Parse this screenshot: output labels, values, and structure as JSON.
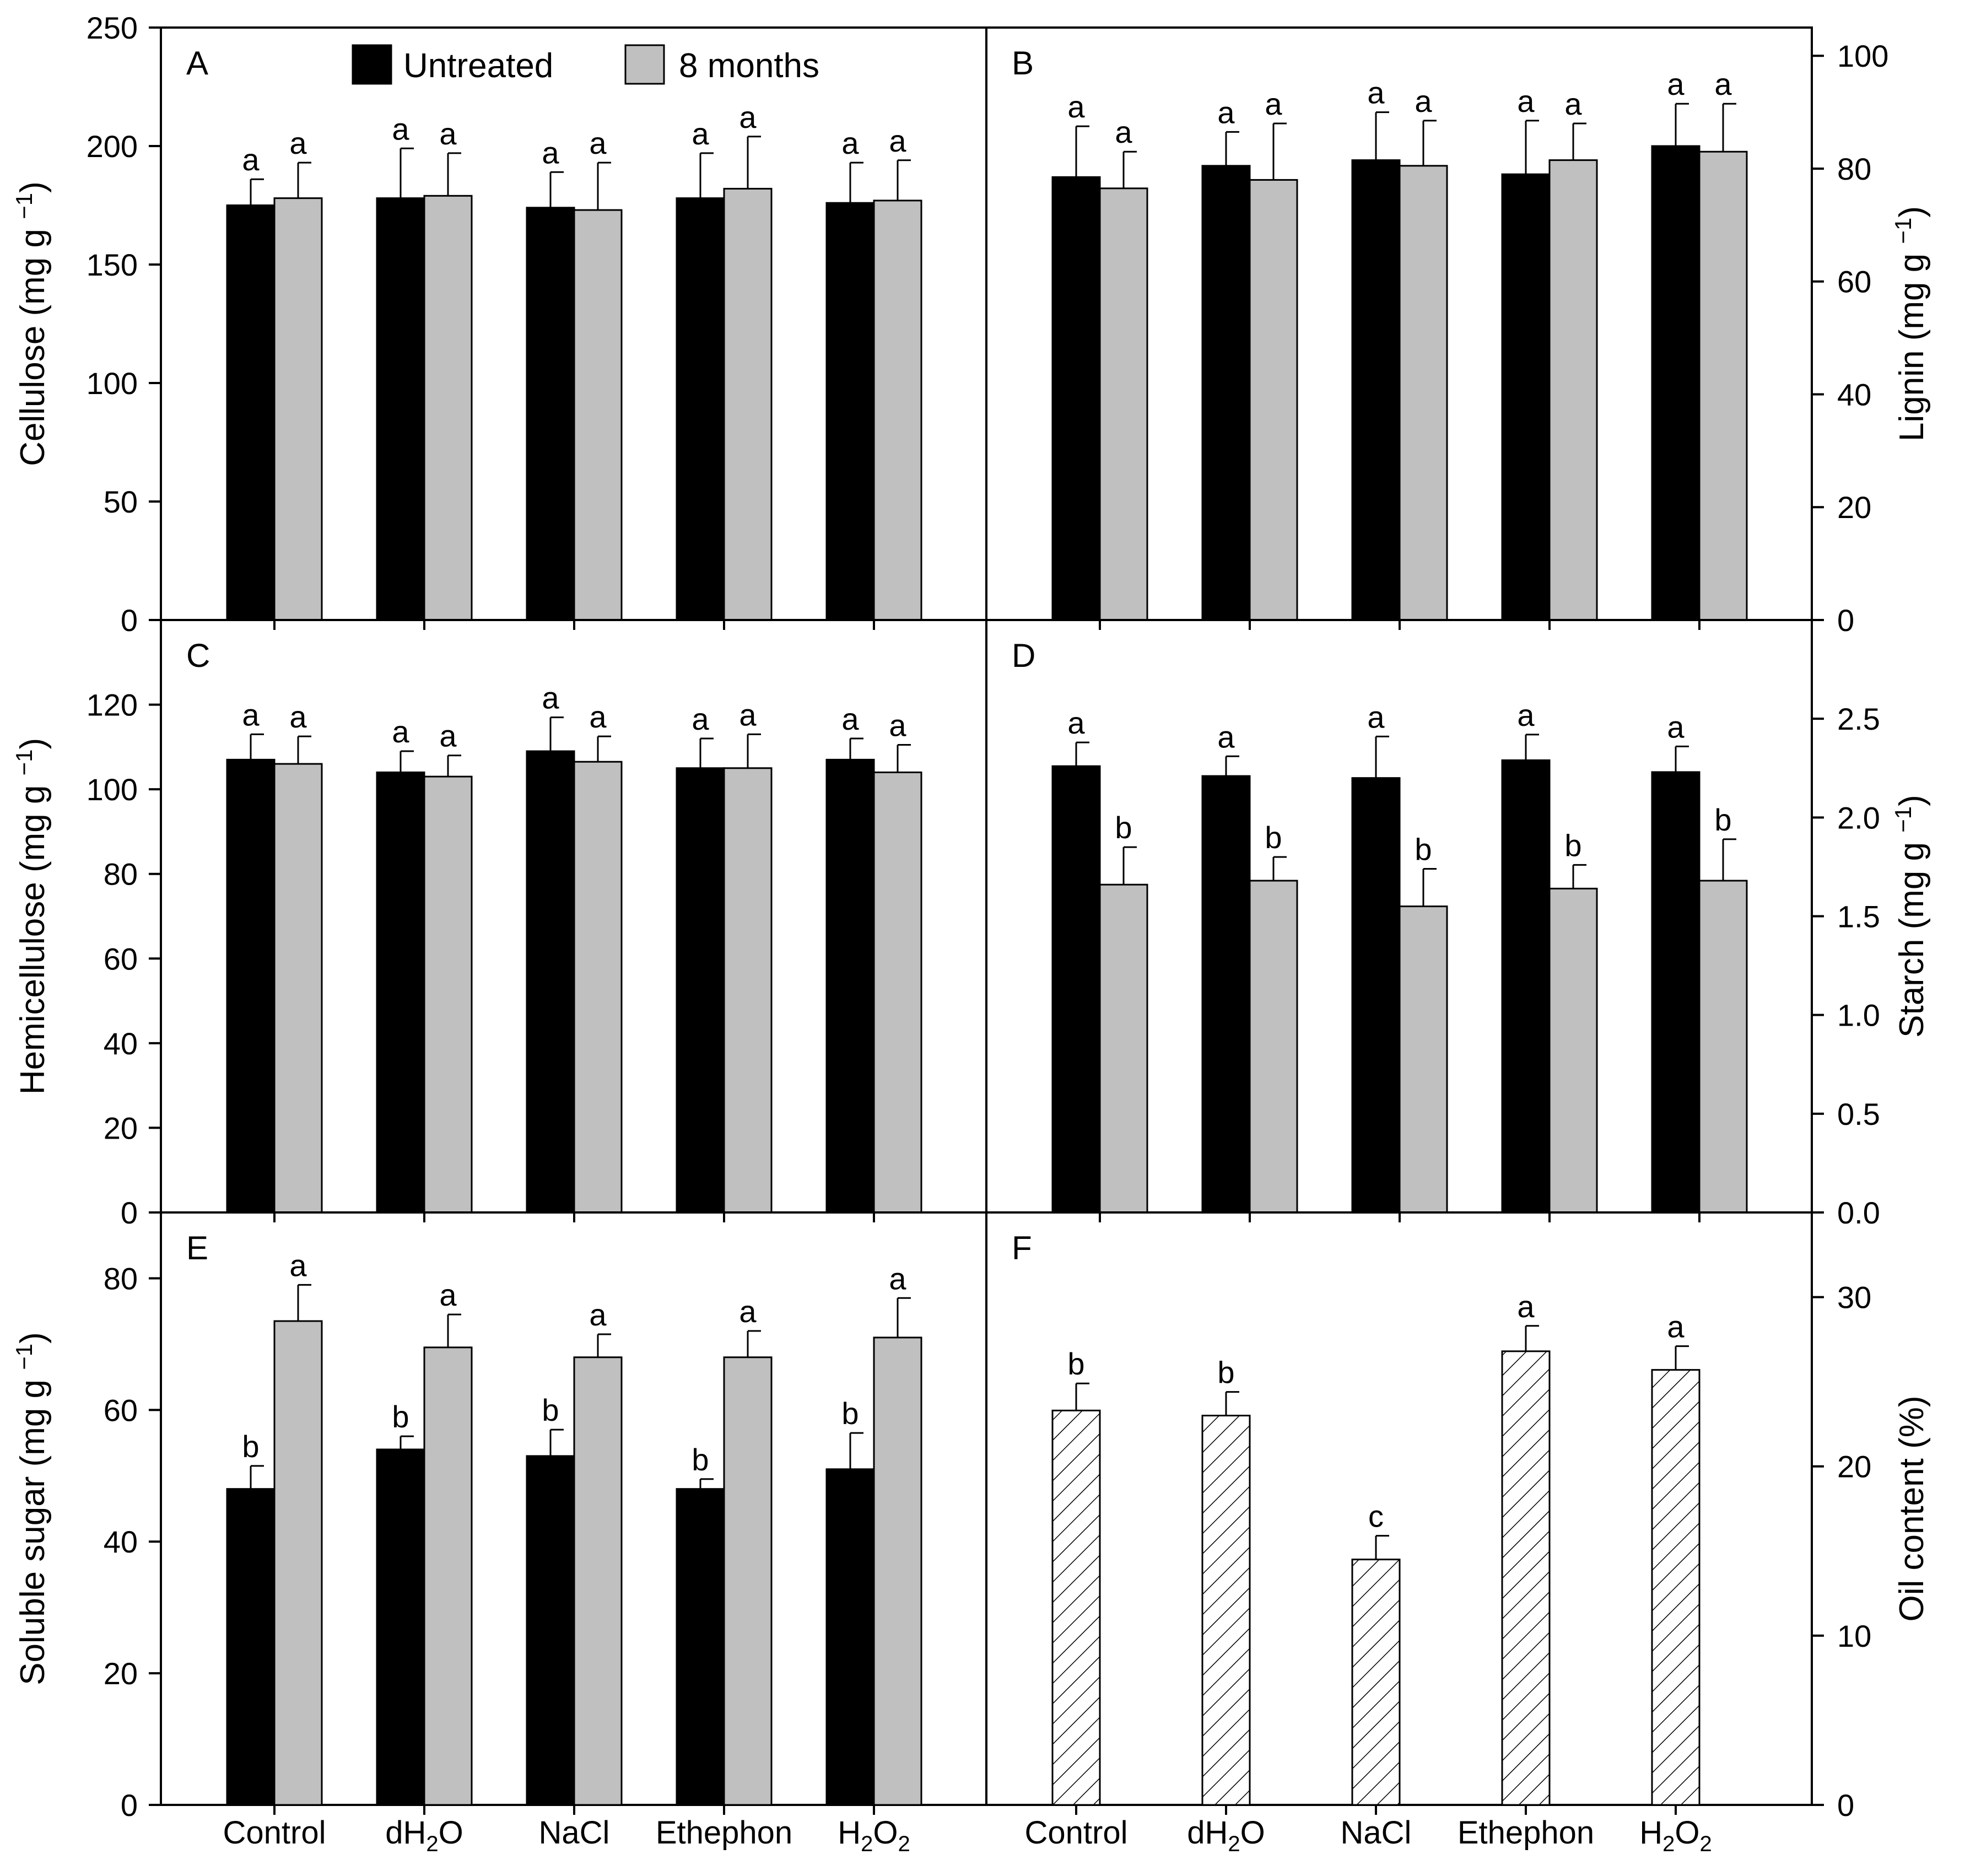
{
  "colors": {
    "untreated": "#000000",
    "months8": "#c0c0c0",
    "oil_fill": "#ffffff",
    "axis": "#000000"
  },
  "legend": {
    "entries": [
      "Untreated",
      "8 months"
    ]
  },
  "chart_data": [
    {
      "panel": "A",
      "type": "bar",
      "axis_side": "left",
      "ylabel": "Cellulose (mg g⁻¹)",
      "ylim": [
        0,
        250
      ],
      "ticks": [
        0,
        50,
        100,
        150,
        200,
        250
      ],
      "categories": [
        "Control",
        "dH2O",
        "NaCl",
        "Ethephon",
        "H2O2"
      ],
      "series": [
        {
          "name": "Untreated",
          "values": [
            175,
            178,
            174,
            178,
            176
          ],
          "errors": [
            11,
            21,
            15,
            19,
            17
          ],
          "letters": [
            "a",
            "a",
            "a",
            "a",
            "a"
          ]
        },
        {
          "name": "8 months",
          "values": [
            178,
            179,
            173,
            182,
            177
          ],
          "errors": [
            15,
            18,
            20,
            22,
            17
          ],
          "letters": [
            "a",
            "a",
            "a",
            "a",
            "a"
          ]
        }
      ]
    },
    {
      "panel": "B",
      "type": "bar",
      "axis_side": "right",
      "ylabel": "Lignin (mg g⁻¹)",
      "ylim": [
        0,
        105
      ],
      "ticks": [
        0,
        20,
        40,
        60,
        80,
        100
      ],
      "categories": [
        "Control",
        "dH2O",
        "NaCl",
        "Ethephon",
        "H2O2"
      ],
      "series": [
        {
          "name": "Untreated",
          "values": [
            78.5,
            80.5,
            81.5,
            79,
            84
          ],
          "errors": [
            9,
            6,
            8.5,
            9.5,
            7.5
          ],
          "letters": [
            "a",
            "a",
            "a",
            "a",
            "a"
          ]
        },
        {
          "name": "8 months",
          "values": [
            76.5,
            78,
            80.5,
            81.5,
            83
          ],
          "errors": [
            6.5,
            10,
            8,
            6.5,
            8.5
          ],
          "letters": [
            "a",
            "a",
            "a",
            "a",
            "a"
          ]
        }
      ]
    },
    {
      "panel": "C",
      "type": "bar",
      "axis_side": "left",
      "ylabel": "Hemicellulose (mg g⁻¹)",
      "ylim": [
        0,
        140
      ],
      "ticks": [
        0,
        20,
        40,
        60,
        80,
        100,
        120
      ],
      "categories": [
        "Control",
        "dH2O",
        "NaCl",
        "Ethephon",
        "H2O2"
      ],
      "series": [
        {
          "name": "Untreated",
          "values": [
            107,
            104,
            109,
            105,
            107
          ],
          "errors": [
            6,
            5,
            8,
            7,
            5
          ],
          "letters": [
            "a",
            "a",
            "a",
            "a",
            "a"
          ]
        },
        {
          "name": "8 months",
          "values": [
            106,
            103,
            106.5,
            105,
            104
          ],
          "errors": [
            6.5,
            5,
            6,
            8,
            6.5
          ],
          "letters": [
            "a",
            "a",
            "a",
            "a",
            "a"
          ]
        }
      ]
    },
    {
      "panel": "D",
      "type": "bar",
      "axis_side": "right",
      "ylabel": "Starch (mg g⁻¹)",
      "ylim": [
        0,
        3.0
      ],
      "ticks": [
        0.0,
        0.5,
        1.0,
        1.5,
        2.0,
        2.5
      ],
      "tick_decimals": 1,
      "categories": [
        "Control",
        "dH2O",
        "NaCl",
        "Ethephon",
        "H2O2"
      ],
      "series": [
        {
          "name": "Untreated",
          "values": [
            2.26,
            2.21,
            2.2,
            2.29,
            2.23
          ],
          "errors": [
            0.12,
            0.1,
            0.21,
            0.13,
            0.13
          ],
          "letters": [
            "a",
            "a",
            "a",
            "a",
            "a"
          ]
        },
        {
          "name": "8 months",
          "values": [
            1.66,
            1.68,
            1.55,
            1.64,
            1.68
          ],
          "errors": [
            0.19,
            0.12,
            0.19,
            0.12,
            0.21
          ],
          "letters": [
            "b",
            "b",
            "b",
            "b",
            "b"
          ]
        }
      ]
    },
    {
      "panel": "E",
      "type": "bar",
      "axis_side": "left",
      "ylabel": "Soluble sugar (mg g⁻¹)",
      "ylim": [
        0,
        90
      ],
      "ticks": [
        0,
        20,
        40,
        60,
        80
      ],
      "categories": [
        "Control",
        "dH2O",
        "NaCl",
        "Ethephon",
        "H2O2"
      ],
      "category_labels": [
        {
          "main": "Control"
        },
        {
          "main": "dH",
          "sub": "2",
          "tail": "O"
        },
        {
          "main": "NaCl"
        },
        {
          "main": "Ethephon"
        },
        {
          "main": "H",
          "sub": "2",
          "tail": "O",
          "sub2": "2"
        }
      ],
      "series": [
        {
          "name": "Untreated",
          "values": [
            48,
            54,
            53,
            48,
            51
          ],
          "errors": [
            3.5,
            2,
            4,
            1.5,
            5.5
          ],
          "letters": [
            "b",
            "b",
            "b",
            "b",
            "b"
          ]
        },
        {
          "name": "8 months",
          "values": [
            73.5,
            69.5,
            68,
            68,
            71
          ],
          "errors": [
            5.5,
            5,
            3.5,
            4,
            6
          ],
          "letters": [
            "a",
            "a",
            "a",
            "a",
            "a"
          ]
        }
      ]
    },
    {
      "panel": "F",
      "type": "bar",
      "axis_side": "right",
      "ylabel": "Oil content (%)",
      "ylim": [
        0,
        35
      ],
      "ticks": [
        0,
        10,
        20,
        30
      ],
      "categories": [
        "Control",
        "dH2O",
        "NaCl",
        "Ethephon",
        "H2O2"
      ],
      "category_labels": [
        {
          "main": "Control"
        },
        {
          "main": "dH",
          "sub": "2",
          "tail": "O"
        },
        {
          "main": "NaCl"
        },
        {
          "main": "Ethephon"
        },
        {
          "main": "H",
          "sub": "2",
          "tail": "O",
          "sub2": "2"
        }
      ],
      "pattern": "hatched",
      "series": [
        {
          "values": [
            23.3,
            23,
            14.5,
            26.8,
            25.7
          ],
          "errors": [
            1.6,
            1.4,
            1.4,
            1.5,
            1.4
          ],
          "letters": [
            "b",
            "b",
            "c",
            "a",
            "a"
          ]
        }
      ]
    }
  ]
}
